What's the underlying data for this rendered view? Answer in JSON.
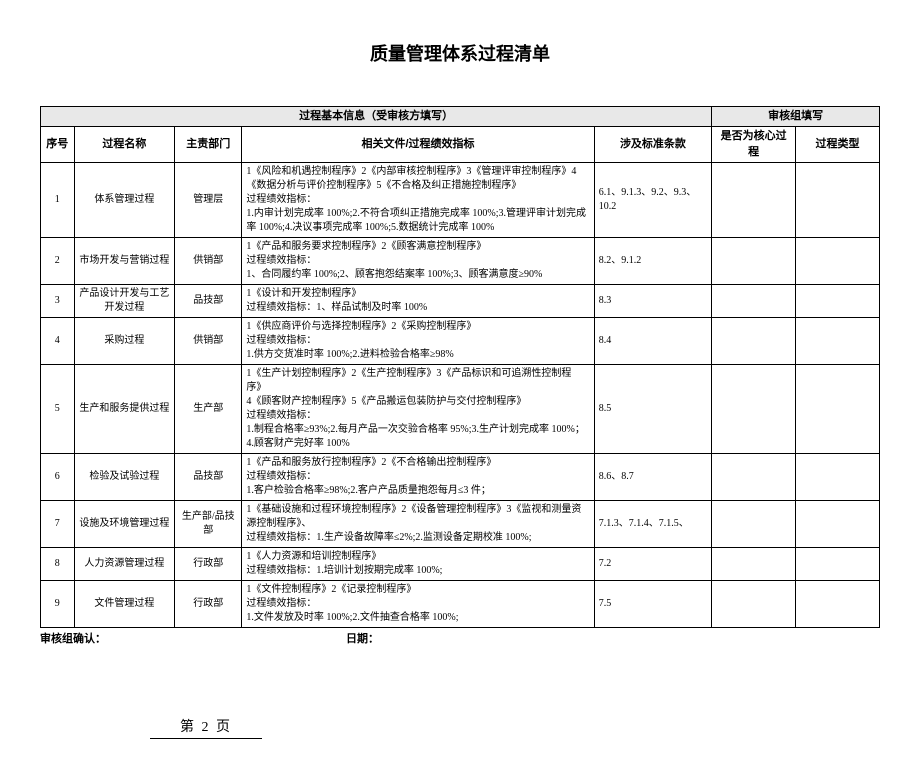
{
  "title": "质量管理体系过程清单",
  "header": {
    "group1": "过程基本信息（受审核方填写）",
    "group2": "审核组填写",
    "seq": "序号",
    "name": "过程名称",
    "dept": "主责部门",
    "docs": "相关文件/过程绩效指标",
    "std": "涉及标准条款",
    "core": "是否为核心过程",
    "type": "过程类型"
  },
  "rows": [
    {
      "seq": "1",
      "name": "体系管理过程",
      "dept": "管理层",
      "docs": "1《风险和机遇控制程序》2《内部审核控制程序》3《管理评审控制程序》4《数据分析与评价控制程序》5《不合格及纠正措施控制程序》\n过程绩效指标：\n1.内审计划完成率 100%;2.不符合项纠正措施完成率 100%;3.管理评审计划完成率 100%;4.决议事项完成率 100%;5.数据统计完成率 100%",
      "std": "6.1、9.1.3、9.2、9.3、10.2",
      "core": "",
      "type": ""
    },
    {
      "seq": "2",
      "name": "市场开发与营销过程",
      "dept": "供销部",
      "docs": "1《产品和服务要求控制程序》2《顾客满意控制程序》\n过程绩效指标：\n1、合同履约率 100%;2、顾客抱怨结案率 100%;3、顾客满意度≥90%",
      "std": "8.2、9.1.2",
      "core": "",
      "type": ""
    },
    {
      "seq": "3",
      "name": "产品设计开发与工艺开发过程",
      "dept": "品技部",
      "docs": "1《设计和开发控制程序》\n过程绩效指标：1、样品试制及时率 100%",
      "std": "8.3",
      "core": "",
      "type": ""
    },
    {
      "seq": "4",
      "name": "采购过程",
      "dept": "供销部",
      "docs": "1《供应商评价与选择控制程序》2《采购控制程序》\n过程绩效指标：\n1.供方交货准时率 100%;2.进料检验合格率≥98%",
      "std": "8.4",
      "core": "",
      "type": ""
    },
    {
      "seq": "5",
      "name": "生产和服务提供过程",
      "dept": "生产部",
      "docs": "1《生产计划控制程序》2《生产控制程序》3《产品标识和可追溯性控制程序》\n4《顾客财产控制程序》5《产品搬运包装防护与交付控制程序》\n过程绩效指标：\n1.制程合格率≥93%;2.每月产品一次交验合格率 95%;3.生产计划完成率 100%；4.顾客财产完好率 100%",
      "std": "8.5",
      "core": "",
      "type": ""
    },
    {
      "seq": "6",
      "name": "检验及试验过程",
      "dept": "品技部",
      "docs": "1《产品和服务放行控制程序》2《不合格输出控制程序》\n过程绩效指标：\n1.客户检验合格率≥98%;2.客户产品质量抱怨每月≤3 件；",
      "std": "8.6、8.7",
      "core": "",
      "type": ""
    },
    {
      "seq": "7",
      "name": "设施及环境管理过程",
      "dept": "生产部/品技部",
      "docs": "1《基础设施和过程环境控制程序》2《设备管理控制程序》3《监视和测量资源控制程序》、\n过程绩效指标：1.生产设备故障率≤2%;2.监测设备定期校准 100%;",
      "std": "7.1.3、7.1.4、7.1.5、",
      "core": "",
      "type": ""
    },
    {
      "seq": "8",
      "name": "人力资源管理过程",
      "dept": "行政部",
      "docs": "1《人力资源和培训控制程序》\n过程绩效指标：1.培训计划按期完成率 100%;",
      "std": "7.2",
      "core": "",
      "type": ""
    },
    {
      "seq": "9",
      "name": "文件管理过程",
      "dept": "行政部",
      "docs": "1《文件控制程序》2《记录控制程序》\n过程绩效指标：\n1.文件发放及时率 100%;2.文件抽查合格率 100%;",
      "std": "7.5",
      "core": "",
      "type": ""
    }
  ],
  "footer": {
    "confirm": "审核组确认：",
    "date": "日期："
  },
  "page": "第 2 页"
}
